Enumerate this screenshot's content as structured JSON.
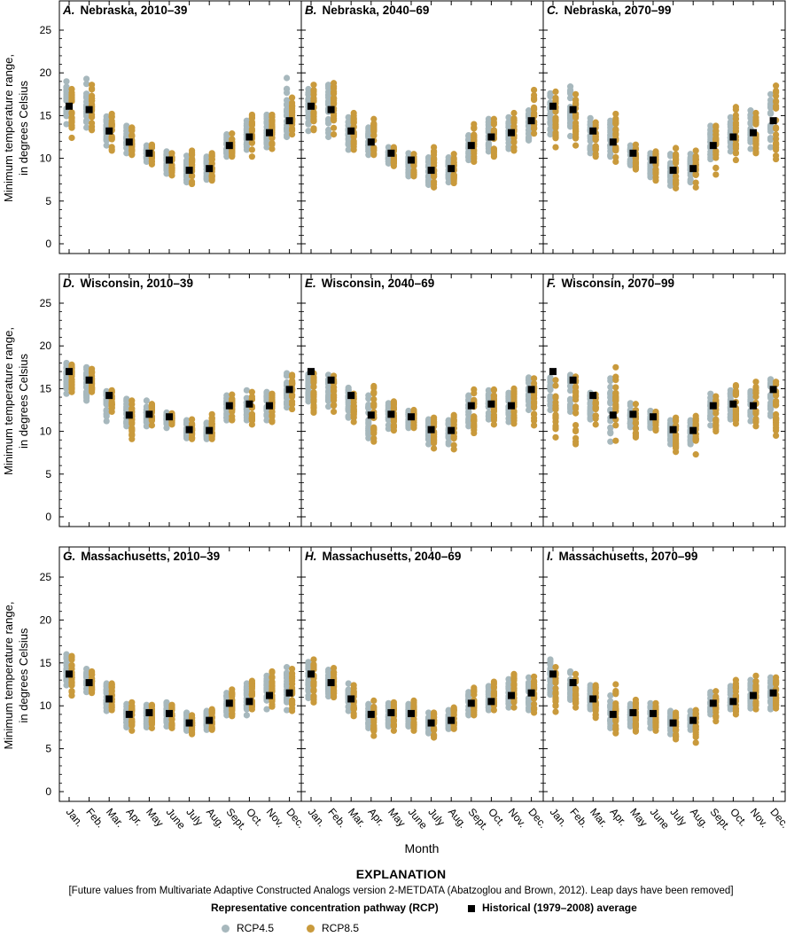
{
  "figure": {
    "ylabel_line1": "Minimum temperature range,",
    "ylabel_line2": "in degrees Celsius",
    "xlabel": "Month"
  },
  "colors": {
    "rcp45": "#a7b8bd",
    "rcp85": "#c99a3c",
    "historical": "#000000"
  },
  "explanation": {
    "title": "EXPLANATION",
    "note": "[Future values from Multivariate Adaptive Constructed Analogs version 2-METDATA (Abatzoglou and Brown, 2012). Leap days have been removed]",
    "rcp_heading": "Representative concentration pathway (RCP)",
    "historical_label": "Historical (1979–2008) average",
    "rcp45_label": "RCP4.5",
    "rcp85_label": "RCP8.5"
  },
  "chart_data": [
    {
      "type": "scatter",
      "panel_letter": "A.",
      "panel_title": "Nebraska, 2010–39",
      "categories": [
        "Jan.",
        "Feb.",
        "Mar.",
        "Apr.",
        "May",
        "June",
        "July",
        "Aug.",
        "Sept.",
        "Oct.",
        "Nov.",
        "Dec."
      ],
      "ylim": [
        0,
        25
      ],
      "yticks": [
        0,
        5,
        10,
        15,
        20,
        25
      ],
      "historical": [
        16.1,
        15.7,
        13.2,
        11.9,
        10.6,
        9.8,
        8.6,
        8.8,
        11.5,
        12.5,
        13.0,
        14.4
      ],
      "rcp45_min": [
        14.0,
        13.6,
        11.5,
        10.6,
        9.6,
        8.2,
        7.2,
        7.5,
        10.2,
        11.0,
        11.3,
        12.5
      ],
      "rcp45_max": [
        19.0,
        19.3,
        14.9,
        13.8,
        11.5,
        10.8,
        10.3,
        10.2,
        12.8,
        14.4,
        15.1,
        19.4
      ],
      "rcp85_min": [
        12.4,
        13.3,
        10.9,
        10.4,
        9.3,
        8.0,
        7.0,
        7.4,
        10.2,
        10.2,
        11.1,
        12.8
      ],
      "rcp85_max": [
        18.1,
        18.6,
        15.2,
        13.6,
        11.6,
        10.6,
        10.9,
        10.6,
        12.9,
        15.1,
        15.1,
        17.1
      ]
    },
    {
      "type": "scatter",
      "panel_letter": "B.",
      "panel_title": "Nebraska, 2040–69",
      "categories": [
        "Jan.",
        "Feb.",
        "Mar.",
        "Apr.",
        "May",
        "June",
        "July",
        "Aug.",
        "Sept.",
        "Oct.",
        "Nov.",
        "Dec."
      ],
      "ylim": [
        0,
        25
      ],
      "yticks": [
        0,
        5,
        10,
        15,
        20,
        25
      ],
      "historical": [
        16.1,
        15.7,
        13.2,
        11.9,
        10.6,
        9.8,
        8.6,
        8.8,
        11.5,
        12.5,
        13.0,
        14.4
      ],
      "rcp45_min": [
        13.2,
        12.5,
        11.0,
        10.4,
        9.4,
        7.9,
        6.9,
        7.2,
        9.8,
        10.8,
        11.1,
        12.1
      ],
      "rcp45_max": [
        18.1,
        18.6,
        14.8,
        13.6,
        11.3,
        10.6,
        10.1,
        10.1,
        12.7,
        14.6,
        14.8,
        15.6
      ],
      "rcp85_min": [
        13.3,
        12.8,
        11.0,
        10.4,
        9.1,
        7.9,
        6.6,
        7.1,
        9.6,
        10.2,
        10.9,
        12.9
      ],
      "rcp85_max": [
        18.6,
        18.8,
        15.3,
        14.6,
        11.3,
        10.5,
        11.3,
        10.5,
        14.0,
        14.6,
        15.3,
        18.0
      ]
    },
    {
      "type": "scatter",
      "panel_letter": "C.",
      "panel_title": "Nebraska, 2070–99",
      "categories": [
        "Jan.",
        "Feb.",
        "Mar.",
        "Apr.",
        "May",
        "June",
        "July",
        "Aug.",
        "Sept.",
        "Oct.",
        "Nov.",
        "Dec."
      ],
      "ylim": [
        0,
        25
      ],
      "yticks": [
        0,
        5,
        10,
        15,
        20,
        25
      ],
      "historical": [
        16.1,
        15.7,
        13.2,
        11.9,
        10.6,
        9.8,
        8.6,
        8.8,
        11.5,
        12.5,
        13.0,
        14.4
      ],
      "rcp45_min": [
        12.8,
        12.6,
        10.6,
        10.2,
        9.2,
        7.8,
        6.8,
        7.2,
        9.9,
        10.8,
        11.1,
        11.3
      ],
      "rcp45_max": [
        17.6,
        18.4,
        14.7,
        14.4,
        11.5,
        10.6,
        10.5,
        10.5,
        13.8,
        14.8,
        15.6,
        17.5
      ],
      "rcp85_min": [
        11.3,
        11.5,
        10.2,
        9.6,
        8.7,
        7.4,
        6.5,
        6.6,
        8.1,
        9.8,
        10.6,
        9.9
      ],
      "rcp85_max": [
        17.8,
        17.5,
        14.2,
        15.2,
        11.6,
        10.8,
        11.2,
        10.9,
        13.8,
        16.0,
        15.3,
        18.5
      ]
    },
    {
      "type": "scatter",
      "panel_letter": "D.",
      "panel_title": "Wisconsin, 2010–39",
      "categories": [
        "Jan.",
        "Feb.",
        "Mar.",
        "Apr.",
        "May",
        "June",
        "July",
        "Aug.",
        "Sept.",
        "Oct.",
        "Nov.",
        "Dec."
      ],
      "ylim": [
        0,
        25
      ],
      "yticks": [
        0,
        5,
        10,
        15,
        20,
        25
      ],
      "historical": [
        17.0,
        16.0,
        14.2,
        11.9,
        12.0,
        11.7,
        10.2,
        10.1,
        13.0,
        13.2,
        13.0,
        14.9
      ],
      "rcp45_min": [
        14.4,
        13.6,
        11.2,
        10.6,
        10.6,
        10.4,
        9.2,
        9.1,
        11.3,
        11.3,
        11.3,
        12.8
      ],
      "rcp45_max": [
        18.0,
        17.5,
        14.7,
        13.8,
        13.6,
        12.2,
        11.3,
        11.0,
        14.2,
        14.8,
        14.6,
        16.8
      ],
      "rcp85_min": [
        14.6,
        14.6,
        12.3,
        9.1,
        10.7,
        10.8,
        9.1,
        9.1,
        11.3,
        10.8,
        11.1,
        12.6
      ],
      "rcp85_max": [
        17.8,
        17.3,
        14.8,
        13.6,
        13.2,
        12.1,
        11.4,
        12.0,
        14.3,
        14.6,
        14.4,
        16.6
      ]
    },
    {
      "type": "scatter",
      "panel_letter": "E.",
      "panel_title": "Wisconsin, 2040–69",
      "categories": [
        "Jan.",
        "Feb.",
        "Mar.",
        "Apr.",
        "May",
        "June",
        "July",
        "Aug.",
        "Sept.",
        "Oct.",
        "Nov.",
        "Dec."
      ],
      "ylim": [
        0,
        25
      ],
      "yticks": [
        0,
        5,
        10,
        15,
        20,
        25
      ],
      "historical": [
        17.0,
        16.0,
        14.2,
        11.9,
        12.0,
        11.7,
        10.2,
        10.1,
        13.0,
        13.2,
        13.0,
        14.9
      ],
      "rcp45_min": [
        13.5,
        12.9,
        11.6,
        9.2,
        10.3,
        10.4,
        8.5,
        8.5,
        10.6,
        11.4,
        11.1,
        12.5
      ],
      "rcp45_max": [
        16.7,
        16.6,
        15.1,
        14.2,
        13.3,
        12.4,
        11.4,
        11.3,
        14.2,
        14.8,
        14.5,
        16.3
      ],
      "rcp85_min": [
        12.2,
        12.3,
        11.1,
        8.8,
        10.1,
        10.4,
        8.0,
        7.9,
        9.8,
        10.8,
        10.9,
        10.7
      ],
      "rcp85_max": [
        16.8,
        16.5,
        14.4,
        15.3,
        13.5,
        12.5,
        11.6,
        11.9,
        14.9,
        14.9,
        15.0,
        16.2
      ]
    },
    {
      "type": "scatter",
      "panel_letter": "F.",
      "panel_title": "Wisconsin, 2070–99",
      "categories": [
        "Jan.",
        "Feb.",
        "Mar.",
        "Apr.",
        "May",
        "June",
        "July",
        "Aug.",
        "Sept.",
        "Oct.",
        "Nov.",
        "Dec."
      ],
      "ylim": [
        0,
        25
      ],
      "yticks": [
        0,
        5,
        10,
        15,
        20,
        25
      ],
      "historical": [
        17.0,
        16.0,
        14.2,
        11.9,
        12.0,
        11.7,
        10.2,
        10.1,
        13.0,
        13.2,
        13.0,
        14.9
      ],
      "rcp45_min": [
        12.5,
        12.3,
        11.4,
        8.8,
        10.5,
        10.4,
        8.5,
        8.5,
        10.7,
        11.4,
        11.2,
        11.8
      ],
      "rcp45_max": [
        16.3,
        16.6,
        14.5,
        16.2,
        13.3,
        12.4,
        11.3,
        11.3,
        14.4,
        14.8,
        14.7,
        16.1
      ],
      "rcp85_min": [
        9.3,
        8.5,
        10.8,
        8.9,
        9.3,
        10.1,
        7.6,
        7.3,
        10.0,
        10.9,
        10.6,
        9.5
      ],
      "rcp85_max": [
        16.0,
        16.4,
        14.3,
        17.5,
        13.2,
        12.3,
        11.6,
        11.8,
        14.1,
        15.4,
        15.8,
        15.8
      ]
    },
    {
      "type": "scatter",
      "panel_letter": "G.",
      "panel_title": "Massachusetts, 2010–39",
      "categories": [
        "Jan.",
        "Feb.",
        "Mar.",
        "Apr.",
        "May",
        "June",
        "July",
        "Aug.",
        "Sept.",
        "Oct.",
        "Nov.",
        "Dec."
      ],
      "ylim": [
        0,
        25
      ],
      "yticks": [
        0,
        5,
        10,
        15,
        20,
        25
      ],
      "historical": [
        13.7,
        12.7,
        10.8,
        9.0,
        9.2,
        9.1,
        8.0,
        8.3,
        10.3,
        10.5,
        11.2,
        11.5
      ],
      "rcp45_min": [
        12.4,
        11.6,
        9.4,
        7.5,
        7.5,
        7.6,
        7.1,
        7.2,
        8.9,
        8.9,
        9.6,
        9.5
      ],
      "rcp45_max": [
        16.0,
        14.3,
        12.6,
        10.2,
        10.1,
        10.4,
        9.2,
        9.4,
        11.5,
        12.6,
        13.5,
        14.5
      ],
      "rcp85_min": [
        11.2,
        11.5,
        9.5,
        7.1,
        7.4,
        7.4,
        6.7,
        7.2,
        8.8,
        9.6,
        9.9,
        9.4
      ],
      "rcp85_max": [
        15.8,
        14.0,
        12.6,
        10.4,
        10.1,
        10.1,
        8.9,
        9.6,
        11.9,
        12.9,
        14.0,
        14.3
      ]
    },
    {
      "type": "scatter",
      "panel_letter": "H.",
      "panel_title": "Massachusetts, 2040–69",
      "categories": [
        "Jan.",
        "Feb.",
        "Mar.",
        "Apr.",
        "May",
        "June",
        "July",
        "Aug.",
        "Sept.",
        "Oct.",
        "Nov.",
        "Dec."
      ],
      "ylim": [
        0,
        25
      ],
      "yticks": [
        0,
        5,
        10,
        15,
        20,
        25
      ],
      "historical": [
        13.7,
        12.7,
        10.8,
        9.0,
        9.2,
        9.1,
        8.0,
        8.3,
        10.3,
        10.5,
        11.2,
        11.5
      ],
      "rcp45_min": [
        10.9,
        11.1,
        9.4,
        7.4,
        7.6,
        7.6,
        6.8,
        7.3,
        8.9,
        9.5,
        9.8,
        9.5
      ],
      "rcp45_max": [
        15.1,
        14.2,
        12.6,
        10.2,
        10.3,
        10.2,
        9.2,
        9.5,
        11.6,
        12.3,
        13.1,
        13.3
      ],
      "rcp85_min": [
        10.4,
        11.0,
        8.8,
        6.5,
        7.1,
        7.1,
        6.3,
        7.3,
        8.9,
        9.5,
        9.8,
        9.2
      ],
      "rcp85_max": [
        15.4,
        14.4,
        12.4,
        10.6,
        10.4,
        10.6,
        9.2,
        9.8,
        12.1,
        12.8,
        13.7,
        13.4
      ]
    },
    {
      "type": "scatter",
      "panel_letter": "I.",
      "panel_title": "Massachusetts, 2070–99",
      "categories": [
        "Jan.",
        "Feb.",
        "Mar.",
        "Apr.",
        "May",
        "June",
        "July",
        "Aug.",
        "Sept.",
        "Oct.",
        "Nov.",
        "Dec."
      ],
      "ylim": [
        0,
        25
      ],
      "yticks": [
        0,
        5,
        10,
        15,
        20,
        25
      ],
      "historical": [
        13.7,
        12.7,
        10.8,
        9.0,
        9.2,
        9.1,
        8.0,
        8.3,
        10.3,
        10.5,
        11.2,
        11.5
      ],
      "rcp45_min": [
        11.3,
        10.7,
        9.6,
        7.4,
        7.6,
        7.4,
        6.7,
        7.2,
        9.0,
        9.6,
        9.7,
        9.6
      ],
      "rcp45_max": [
        15.4,
        14.0,
        12.4,
        11.2,
        10.2,
        10.3,
        9.4,
        9.4,
        11.6,
        12.3,
        13.0,
        13.3
      ],
      "rcp85_min": [
        9.3,
        9.8,
        8.6,
        6.8,
        7.0,
        7.1,
        6.1,
        5.7,
        8.2,
        9.0,
        9.6,
        9.7
      ],
      "rcp85_max": [
        14.5,
        13.7,
        12.4,
        12.5,
        10.7,
        10.3,
        9.2,
        9.5,
        11.7,
        13.0,
        13.5,
        13.3
      ]
    }
  ]
}
